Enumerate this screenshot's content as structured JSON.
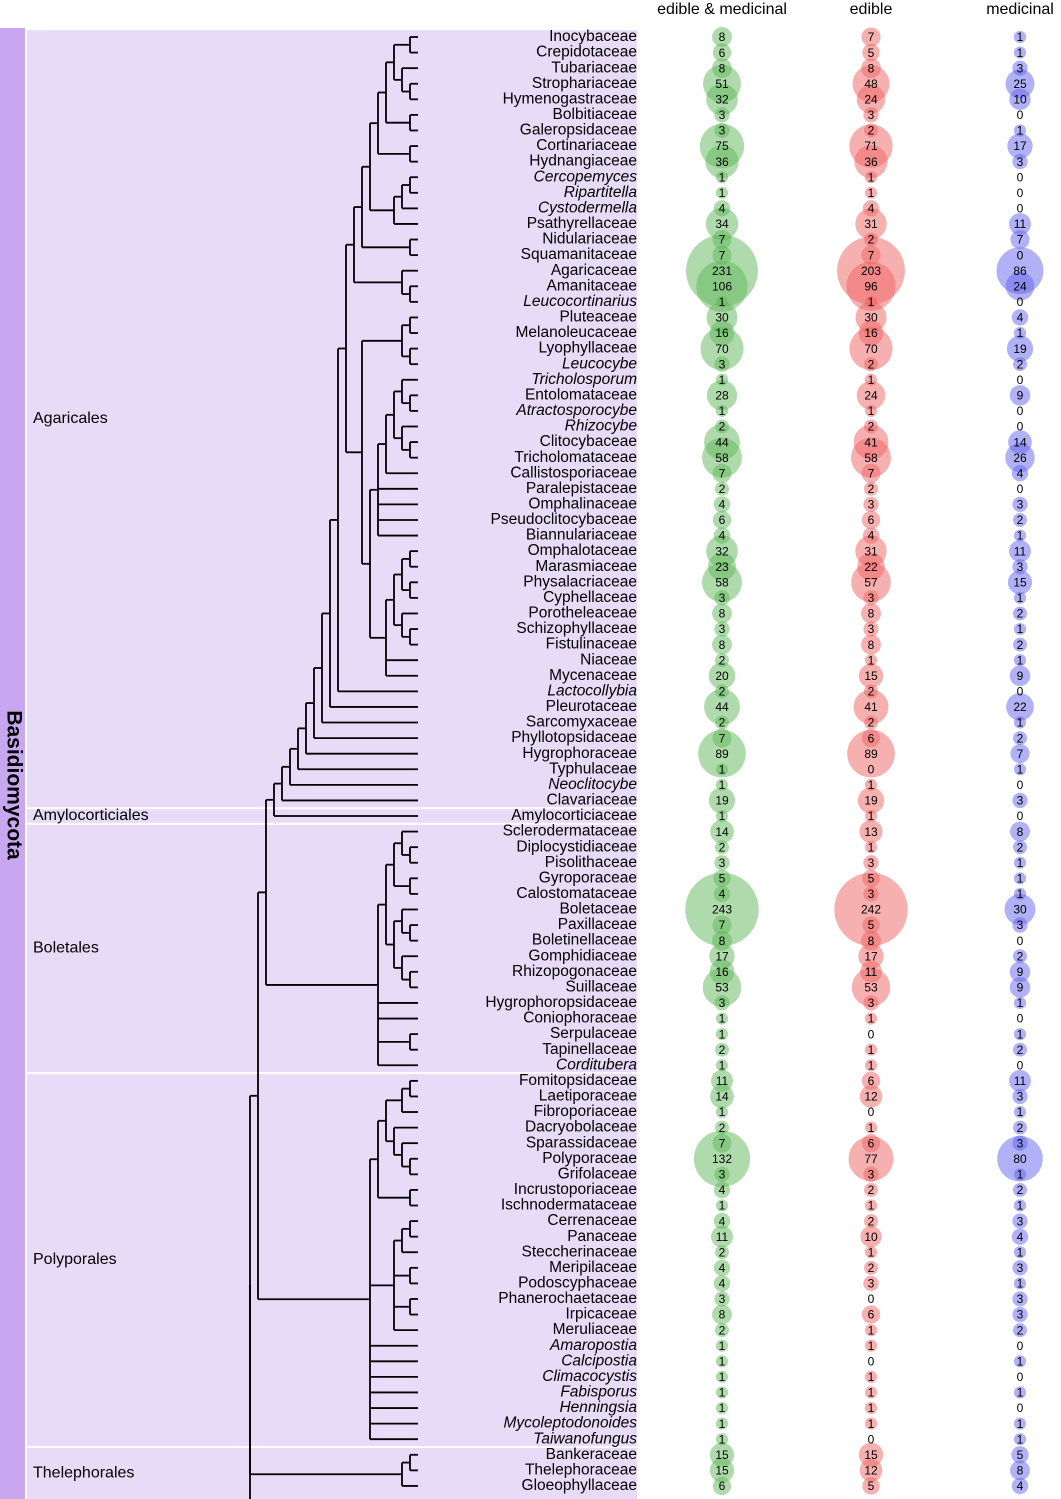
{
  "chart_data": {
    "type": "bubble-tree",
    "phylum": "Basidiomycota",
    "series": [
      {
        "name": "edible & medicinal",
        "color": "#5fb85a"
      },
      {
        "name": "edible",
        "color": "#f06262"
      },
      {
        "name": "medicinal",
        "color": "#6464f0"
      }
    ],
    "groups": [
      {
        "name": "Agaricales",
        "rows": [
          {
            "name": "Inocybaceae",
            "values": [
              8,
              7,
              1
            ]
          },
          {
            "name": "Crepidotaceae",
            "values": [
              6,
              5,
              1
            ]
          },
          {
            "name": "Tubariaceae",
            "values": [
              8,
              8,
              3
            ]
          },
          {
            "name": "Strophariaceae",
            "values": [
              51,
              48,
              25
            ]
          },
          {
            "name": "Hymenogastraceae",
            "values": [
              32,
              24,
              10
            ]
          },
          {
            "name": "Bolbitiaceae",
            "values": [
              3,
              3,
              0
            ]
          },
          {
            "name": "Galeropsidaceae",
            "values": [
              3,
              2,
              1
            ]
          },
          {
            "name": "Cortinariaceae",
            "values": [
              75,
              71,
              17
            ]
          },
          {
            "name": "Hydnangiaceae",
            "values": [
              36,
              36,
              3
            ]
          },
          {
            "name": "Cercopemyces",
            "italic": true,
            "values": [
              1,
              1,
              0
            ]
          },
          {
            "name": "Ripartitella",
            "italic": true,
            "values": [
              1,
              1,
              0
            ]
          },
          {
            "name": "Cystodermella",
            "italic": true,
            "values": [
              4,
              4,
              0
            ]
          },
          {
            "name": "Psathyrellaceae",
            "values": [
              34,
              31,
              11
            ]
          },
          {
            "name": "Nidulariaceae",
            "values": [
              7,
              2,
              7
            ]
          },
          {
            "name": "Squamanitaceae",
            "values": [
              7,
              7,
              0
            ]
          },
          {
            "name": "Agaricaceae",
            "values": [
              231,
              203,
              86
            ]
          },
          {
            "name": "Amanitaceae",
            "values": [
              106,
              96,
              24
            ]
          },
          {
            "name": "Leucocortinarius",
            "italic": true,
            "values": [
              1,
              1,
              0
            ]
          },
          {
            "name": "Pluteaceae",
            "values": [
              30,
              30,
              4
            ]
          },
          {
            "name": "Melanoleucaceae",
            "values": [
              16,
              16,
              1
            ]
          },
          {
            "name": "Lyophyllaceae",
            "values": [
              70,
              70,
              19
            ]
          },
          {
            "name": "Leucocybe",
            "italic": true,
            "values": [
              3,
              2,
              2
            ]
          },
          {
            "name": "Tricholosporum",
            "italic": true,
            "values": [
              1,
              1,
              0
            ]
          },
          {
            "name": "Entolomataceae",
            "values": [
              28,
              24,
              9
            ]
          },
          {
            "name": "Atractosporocybe",
            "italic": true,
            "values": [
              1,
              1,
              0
            ]
          },
          {
            "name": "Rhizocybe",
            "italic": true,
            "values": [
              2,
              2,
              0
            ]
          },
          {
            "name": "Clitocybaceae",
            "values": [
              44,
              41,
              14
            ]
          },
          {
            "name": "Tricholomataceae",
            "values": [
              58,
              58,
              26
            ]
          },
          {
            "name": "Callistosporiaceae",
            "values": [
              7,
              7,
              4
            ]
          },
          {
            "name": "Paralepistaceae",
            "values": [
              2,
              2,
              0
            ]
          },
          {
            "name": "Omphalinaceae",
            "values": [
              4,
              3,
              3
            ]
          },
          {
            "name": "Pseudoclitocybaceae",
            "values": [
              6,
              6,
              2
            ]
          },
          {
            "name": "Biannulariaceae",
            "values": [
              4,
              4,
              1
            ]
          },
          {
            "name": "Omphalotaceae",
            "values": [
              32,
              31,
              11
            ]
          },
          {
            "name": "Marasmiaceae",
            "values": [
              23,
              22,
              3
            ]
          },
          {
            "name": "Physalacriaceae",
            "values": [
              58,
              57,
              15
            ]
          },
          {
            "name": "Cyphellaceae",
            "values": [
              3,
              3,
              1
            ]
          },
          {
            "name": "Porotheleaceae",
            "values": [
              8,
              8,
              2
            ]
          },
          {
            "name": "Schizophyllaceae",
            "values": [
              3,
              3,
              1
            ]
          },
          {
            "name": "Fistulinaceae",
            "values": [
              8,
              8,
              2
            ]
          },
          {
            "name": "Niaceae",
            "values": [
              2,
              1,
              1
            ]
          },
          {
            "name": "Mycenaceae",
            "values": [
              20,
              15,
              9
            ]
          },
          {
            "name": "Lactocollybia",
            "italic": true,
            "values": [
              2,
              2,
              0
            ]
          },
          {
            "name": "Pleurotaceae",
            "values": [
              44,
              41,
              22
            ]
          },
          {
            "name": "Sarcomyxaceae",
            "values": [
              2,
              2,
              1
            ]
          },
          {
            "name": "Phyllotopsidaceae",
            "values": [
              7,
              6,
              2
            ]
          },
          {
            "name": "Hygrophoraceae",
            "values": [
              89,
              89,
              7
            ]
          },
          {
            "name": "Typhulaceae",
            "values": [
              1,
              0,
              1
            ]
          },
          {
            "name": "Neoclitocybe",
            "italic": true,
            "values": [
              1,
              1,
              0
            ]
          },
          {
            "name": "Clavariaceae",
            "values": [
              19,
              19,
              3
            ]
          }
        ]
      },
      {
        "name": "Amylocorticiales",
        "rows": [
          {
            "name": "Amylocorticiaceae",
            "values": [
              1,
              1,
              0
            ]
          }
        ]
      },
      {
        "name": "Boletales",
        "rows": [
          {
            "name": "Sclerodermataceae",
            "values": [
              14,
              13,
              8
            ]
          },
          {
            "name": "Diplocystidiaceae",
            "values": [
              2,
              1,
              2
            ]
          },
          {
            "name": "Pisolithaceae",
            "values": [
              3,
              3,
              1
            ]
          },
          {
            "name": "Gyroporaceae",
            "values": [
              5,
              5,
              1
            ]
          },
          {
            "name": "Calostomataceae",
            "values": [
              4,
              3,
              1
            ]
          },
          {
            "name": "Boletaceae",
            "values": [
              243,
              242,
              30
            ]
          },
          {
            "name": "Paxillaceae",
            "values": [
              7,
              5,
              3
            ]
          },
          {
            "name": "Boletinellaceae",
            "values": [
              8,
              8,
              0
            ]
          },
          {
            "name": "Gomphidiaceae",
            "values": [
              17,
              17,
              2
            ]
          },
          {
            "name": "Rhizopogonaceae",
            "values": [
              16,
              11,
              9
            ]
          },
          {
            "name": "Suillaceae",
            "values": [
              53,
              53,
              9
            ]
          },
          {
            "name": "Hygrophoropsidaceae",
            "values": [
              3,
              3,
              1
            ]
          },
          {
            "name": "Coniophoraceae",
            "values": [
              1,
              1,
              0
            ]
          },
          {
            "name": "Serpulaceae",
            "values": [
              1,
              0,
              1
            ]
          },
          {
            "name": "Tapinellaceae",
            "values": [
              2,
              1,
              2
            ]
          },
          {
            "name": "Corditubera",
            "italic": true,
            "values": [
              1,
              1,
              0
            ]
          }
        ]
      },
      {
        "name": "Polyporales",
        "rows": [
          {
            "name": "Fomitopsidaceae",
            "values": [
              11,
              6,
              11
            ]
          },
          {
            "name": "Laetiporaceae",
            "values": [
              14,
              12,
              3
            ]
          },
          {
            "name": "Fibroporiaceae",
            "values": [
              1,
              0,
              1
            ]
          },
          {
            "name": "Dacryobolaceae",
            "values": [
              2,
              1,
              2
            ]
          },
          {
            "name": "Sparassidaceae",
            "values": [
              7,
              6,
              3
            ]
          },
          {
            "name": "Polyporaceae",
            "values": [
              132,
              77,
              80
            ]
          },
          {
            "name": "Grifolaceae",
            "values": [
              3,
              3,
              1
            ]
          },
          {
            "name": "Incrustoporiaceae",
            "values": [
              4,
              2,
              2
            ]
          },
          {
            "name": "Ischnodermataceae",
            "values": [
              1,
              1,
              1
            ]
          },
          {
            "name": "Cerrenaceae",
            "values": [
              4,
              2,
              3
            ]
          },
          {
            "name": "Panaceae",
            "values": [
              11,
              10,
              4
            ]
          },
          {
            "name": "Steccherinaceae",
            "values": [
              2,
              1,
              1
            ]
          },
          {
            "name": "Meripilaceae",
            "values": [
              4,
              2,
              3
            ]
          },
          {
            "name": "Podoscyphaceae",
            "values": [
              4,
              3,
              1
            ]
          },
          {
            "name": "Phanerochaetaceae",
            "values": [
              3,
              0,
              3
            ]
          },
          {
            "name": "Irpicaceae",
            "values": [
              8,
              6,
              3
            ]
          },
          {
            "name": "Meruliaceae",
            "values": [
              2,
              1,
              2
            ]
          },
          {
            "name": "Amaropostia",
            "italic": true,
            "values": [
              1,
              1,
              0
            ]
          },
          {
            "name": "Calcipostia",
            "italic": true,
            "values": [
              1,
              0,
              1
            ]
          },
          {
            "name": "Climacocystis",
            "italic": true,
            "values": [
              1,
              1,
              0
            ]
          },
          {
            "name": "Fabisporus",
            "italic": true,
            "values": [
              1,
              1,
              1
            ]
          },
          {
            "name": "Henningsia",
            "italic": true,
            "values": [
              1,
              1,
              0
            ]
          },
          {
            "name": "Mycoleptodonoides",
            "italic": true,
            "values": [
              1,
              1,
              1
            ]
          },
          {
            "name": "Taiwanofungus",
            "italic": true,
            "values": [
              1,
              0,
              1
            ]
          }
        ]
      },
      {
        "name": "Thelephorales",
        "rows": [
          {
            "name": "Bankeraceae",
            "values": [
              15,
              15,
              5
            ]
          },
          {
            "name": "Thelephoraceae",
            "values": [
              15,
              12,
              8
            ]
          },
          {
            "name": "Gloeophyllaceae",
            "values": [
              6,
              5,
              4
            ]
          }
        ]
      }
    ]
  }
}
